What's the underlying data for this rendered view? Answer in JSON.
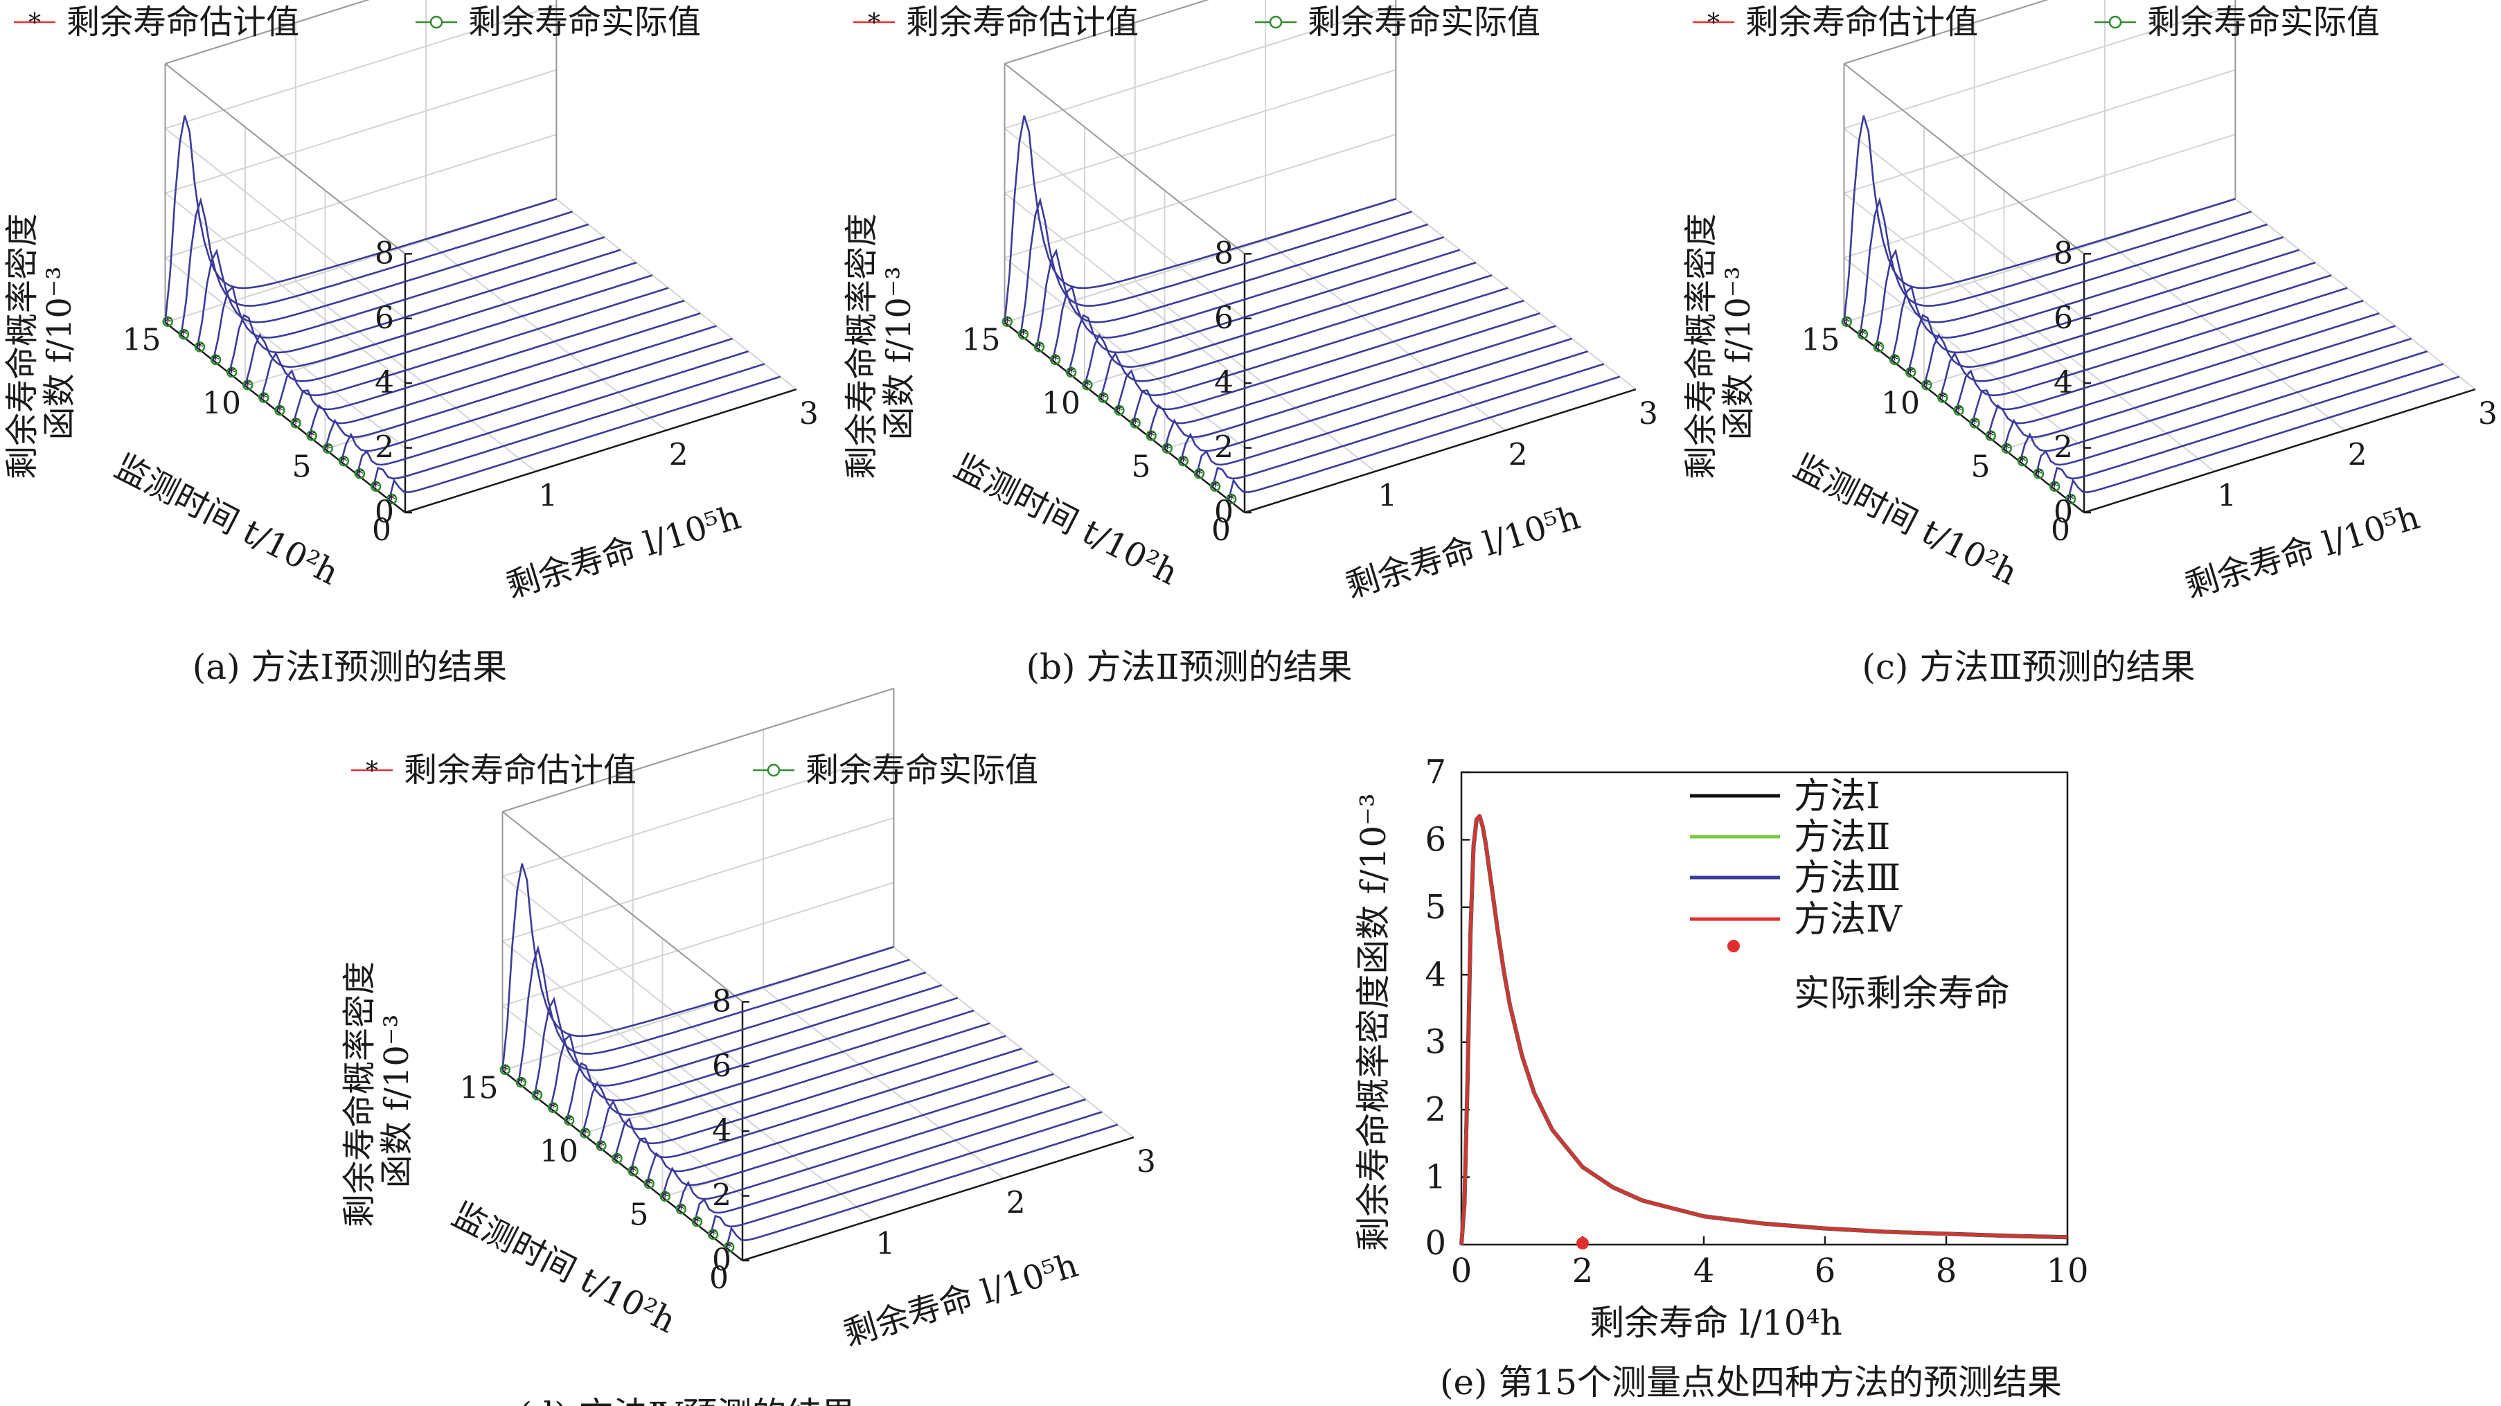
{
  "chart_data": [
    {
      "id": "a",
      "type": "3d-waterfall-line",
      "caption": "(a) 方法Ⅰ预测的结果",
      "legend": [
        "剩余寿命估计值",
        "剩余寿命实际值"
      ],
      "zlabel": [
        "剩余寿命概率密度",
        "函数 f/10⁻³"
      ],
      "ylabel": "监测时间 t/10²h",
      "xlabel": "剩余寿命 l/10⁵h",
      "z_ticks": [
        "0",
        "2",
        "4",
        "6",
        "8"
      ],
      "y_ticks": [
        "0",
        "5",
        "10",
        "15"
      ],
      "x_ticks": [
        "1",
        "2",
        "3"
      ],
      "xlim": [
        0,
        3
      ],
      "ylim": [
        0,
        15
      ],
      "zlim": [
        0,
        8
      ],
      "monitoring_times": [
        1,
        2,
        3,
        4,
        5,
        6,
        7,
        8,
        9,
        10,
        11,
        12,
        13,
        14,
        15
      ],
      "peak_density": [
        0.6,
        0.65,
        0.7,
        0.75,
        0.8,
        0.9,
        1.0,
        1.1,
        1.25,
        1.45,
        1.7,
        2.1,
        2.8,
        4.0,
        6.3
      ],
      "line_color": "#3b3b9a",
      "estimate_color": "#e0302e",
      "actual_color": "#2e8b2e"
    },
    {
      "id": "b",
      "type": "3d-waterfall-line",
      "caption": "(b) 方法Ⅱ预测的结果",
      "legend": [
        "剩余寿命估计值",
        "剩余寿命实际值"
      ],
      "zlabel": [
        "剩余寿命概率密度",
        "函数 f/10⁻³"
      ],
      "ylabel": "监测时间 t/10²h",
      "xlabel": "剩余寿命 l/10⁵h",
      "z_ticks": [
        "0",
        "2",
        "4",
        "6",
        "8"
      ],
      "y_ticks": [
        "0",
        "5",
        "10",
        "15"
      ],
      "x_ticks": [
        "1",
        "2",
        "3"
      ],
      "xlim": [
        0,
        3
      ],
      "ylim": [
        0,
        15
      ],
      "zlim": [
        0,
        8
      ],
      "monitoring_times": [
        1,
        2,
        3,
        4,
        5,
        6,
        7,
        8,
        9,
        10,
        11,
        12,
        13,
        14,
        15
      ],
      "peak_density": [
        0.6,
        0.65,
        0.7,
        0.75,
        0.8,
        0.9,
        1.0,
        1.1,
        1.25,
        1.45,
        1.7,
        2.1,
        2.8,
        4.0,
        6.3
      ],
      "line_color": "#3b3b9a",
      "estimate_color": "#e0302e",
      "actual_color": "#2e8b2e"
    },
    {
      "id": "c",
      "type": "3d-waterfall-line",
      "caption": "(c) 方法Ⅲ预测的结果",
      "legend": [
        "剩余寿命估计值",
        "剩余寿命实际值"
      ],
      "zlabel": [
        "剩余寿命概率密度",
        "函数 f/10⁻³"
      ],
      "ylabel": "监测时间 t/10²h",
      "xlabel": "剩余寿命 l/10⁵h",
      "z_ticks": [
        "0",
        "2",
        "4",
        "6",
        "8"
      ],
      "y_ticks": [
        "0",
        "5",
        "10",
        "15"
      ],
      "x_ticks": [
        "1",
        "2",
        "3"
      ],
      "xlim": [
        0,
        3
      ],
      "ylim": [
        0,
        15
      ],
      "zlim": [
        0,
        8
      ],
      "monitoring_times": [
        1,
        2,
        3,
        4,
        5,
        6,
        7,
        8,
        9,
        10,
        11,
        12,
        13,
        14,
        15
      ],
      "peak_density": [
        0.6,
        0.65,
        0.7,
        0.75,
        0.8,
        0.9,
        1.0,
        1.1,
        1.25,
        1.45,
        1.7,
        2.1,
        2.8,
        4.0,
        6.3
      ],
      "line_color": "#3b3b9a",
      "estimate_color": "#e0302e",
      "actual_color": "#2e8b2e"
    },
    {
      "id": "d",
      "type": "3d-waterfall-line",
      "caption": "(d) 方法Ⅳ预测的结果",
      "legend": [
        "剩余寿命估计值",
        "剩余寿命实际值"
      ],
      "zlabel": [
        "剩余寿命概率密度",
        "函数 f/10⁻³"
      ],
      "ylabel": "监测时间 t/10²h",
      "xlabel": "剩余寿命 l/10⁵h",
      "z_ticks": [
        "0",
        "2",
        "4",
        "6",
        "8"
      ],
      "y_ticks": [
        "0",
        "5",
        "10",
        "15"
      ],
      "x_ticks": [
        "1",
        "2",
        "3"
      ],
      "xlim": [
        0,
        3
      ],
      "ylim": [
        0,
        15
      ],
      "zlim": [
        0,
        8
      ],
      "monitoring_times": [
        1,
        2,
        3,
        4,
        5,
        6,
        7,
        8,
        9,
        10,
        11,
        12,
        13,
        14,
        15
      ],
      "peak_density": [
        0.6,
        0.65,
        0.7,
        0.75,
        0.8,
        0.9,
        1.0,
        1.1,
        1.25,
        1.45,
        1.7,
        2.1,
        2.8,
        4.0,
        6.3
      ],
      "line_color": "#3b3b9a",
      "estimate_color": "#e0302e",
      "actual_color": "#2e8b2e"
    },
    {
      "id": "e",
      "type": "line",
      "caption": "(e) 第15个测量点处四种方法的预测结果",
      "xlabel": "剩余寿命 l/10⁴h",
      "ylabel": "剩余寿命概率密度函数 f/10⁻³",
      "xlim": [
        0,
        10
      ],
      "ylim": [
        0,
        7
      ],
      "x_ticks": [
        "0",
        "2",
        "4",
        "6",
        "8",
        "10"
      ],
      "y_ticks": [
        "1",
        "2",
        "3",
        "4",
        "5",
        "6",
        "7"
      ],
      "legend": [
        "方法Ⅰ",
        "方法Ⅱ",
        "方法Ⅲ",
        "方法Ⅳ",
        "实际剩余寿命"
      ],
      "series_colors": [
        "#111111",
        "#7ac943",
        "#3b3b9a",
        "#e0302e"
      ],
      "x": [
        0,
        0.05,
        0.1,
        0.15,
        0.2,
        0.25,
        0.3,
        0.35,
        0.4,
        0.5,
        0.6,
        0.7,
        0.8,
        1.0,
        1.2,
        1.5,
        2.0,
        2.5,
        3.0,
        4.0,
        5.0,
        6.0,
        7.0,
        8.0,
        9.0,
        10.0
      ],
      "values": [
        0,
        0.6,
        2.4,
        4.6,
        5.9,
        6.3,
        6.35,
        6.2,
        5.95,
        5.3,
        4.65,
        4.05,
        3.55,
        2.8,
        2.25,
        1.7,
        1.15,
        0.85,
        0.65,
        0.42,
        0.31,
        0.24,
        0.19,
        0.16,
        0.13,
        0.11
      ],
      "actual_remaining_life": {
        "x": 2.0,
        "y": 0
      },
      "actual_color": "#e0302e"
    }
  ]
}
